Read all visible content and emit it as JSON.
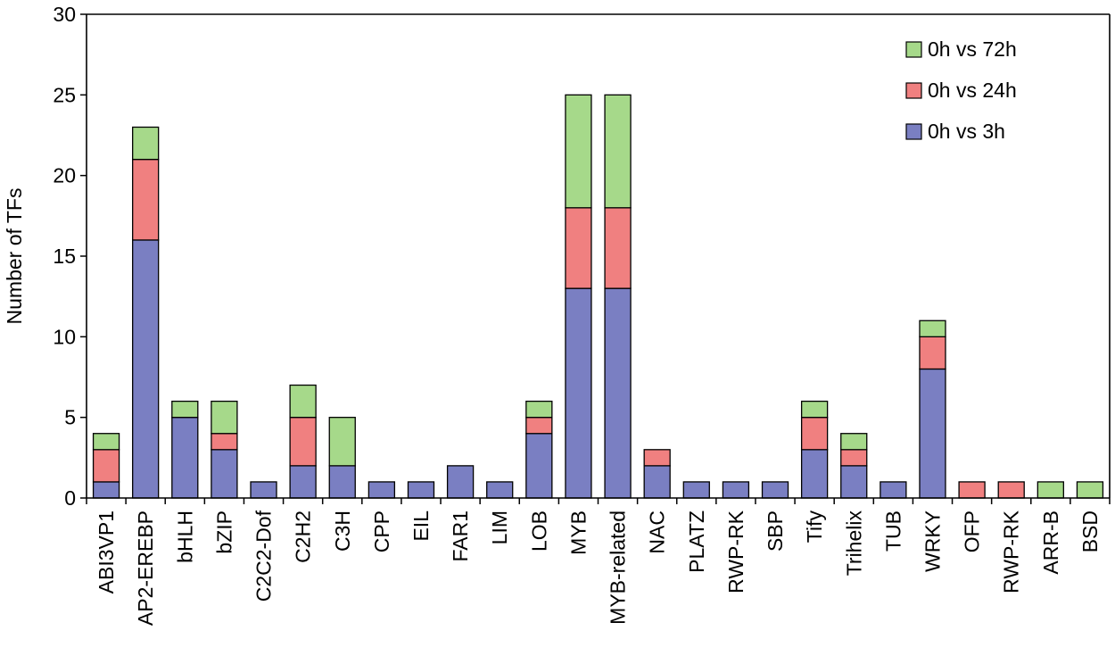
{
  "chart_data": {
    "type": "bar",
    "stacked": true,
    "title": "",
    "xlabel": "",
    "ylabel": "Number of TFs",
    "ylim": [
      0,
      30
    ],
    "yticks": [
      0,
      5,
      10,
      15,
      20,
      25,
      30
    ],
    "grid": false,
    "legend_position": "top-right",
    "categories": [
      "ABI3VP1",
      "AP2-EREBP",
      "bHLH",
      "bZIP",
      "C2C2-Dof",
      "C2H2",
      "C3H",
      "CPP",
      "EIL",
      "FAR1",
      "LIM",
      "LOB",
      "MYB",
      "MYB-related",
      "NAC",
      "PLATZ",
      "RWP-RK",
      "SBP",
      "Tify",
      "Trihelix",
      "TUB",
      "WRKY",
      "OFP",
      "RWP-RK",
      "ARR-B",
      "BSD"
    ],
    "series": [
      {
        "name": "0h vs 3h",
        "color": "#7a7fc2",
        "values": [
          1,
          16,
          5,
          3,
          1,
          2,
          2,
          1,
          1,
          2,
          1,
          4,
          13,
          13,
          2,
          1,
          1,
          1,
          3,
          2,
          1,
          8,
          0,
          0,
          0,
          0
        ]
      },
      {
        "name": "0h vs 24h",
        "color": "#f08080",
        "values": [
          2,
          5,
          0,
          1,
          0,
          3,
          0,
          0,
          0,
          0,
          0,
          1,
          5,
          5,
          1,
          0,
          0,
          0,
          2,
          1,
          0,
          2,
          1,
          1,
          0,
          0
        ]
      },
      {
        "name": "0h vs 72h",
        "color": "#a6d98a",
        "values": [
          1,
          2,
          1,
          2,
          0,
          2,
          3,
          0,
          0,
          0,
          0,
          1,
          7,
          7,
          0,
          0,
          0,
          0,
          1,
          1,
          0,
          1,
          0,
          0,
          1,
          1
        ]
      }
    ],
    "legend_order": [
      "0h vs 72h",
      "0h vs 24h",
      "0h vs 3h"
    ]
  }
}
